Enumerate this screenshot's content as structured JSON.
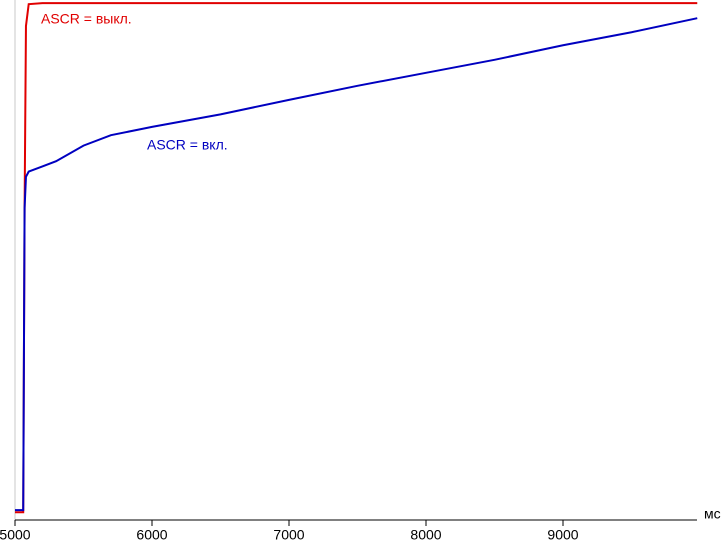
{
  "chart_data": {
    "type": "line",
    "x_label": "мс",
    "x": [
      5000,
      5050,
      5060,
      5070,
      5080,
      5100,
      5200,
      5300,
      5500,
      5700,
      6000,
      6500,
      7000,
      7500,
      8000,
      8500,
      9000,
      9500,
      9980
    ],
    "series": [
      {
        "name": "ASCR = выкл.",
        "color": "#e00000",
        "values": [
          1.5,
          1.5,
          1.5,
          60,
          95,
          99.2,
          99.4,
          99.4,
          99.4,
          99.4,
          99.4,
          99.4,
          99.4,
          99.4,
          99.4,
          99.4,
          99.4,
          99.4,
          99.4
        ]
      },
      {
        "name": "ASCR = вкл.",
        "color": "#0000c0",
        "values": [
          1.9,
          1.9,
          1.9,
          60,
          66,
          67,
          68,
          69,
          72,
          74,
          75.6,
          78,
          80.8,
          83.5,
          86,
          88.5,
          91.3,
          93.8,
          96.5
        ]
      }
    ],
    "xlim": [
      5000,
      10000
    ],
    "ylim": [
      0,
      100
    ],
    "xticks": [
      5000,
      6000,
      7000,
      8000,
      9000
    ]
  }
}
